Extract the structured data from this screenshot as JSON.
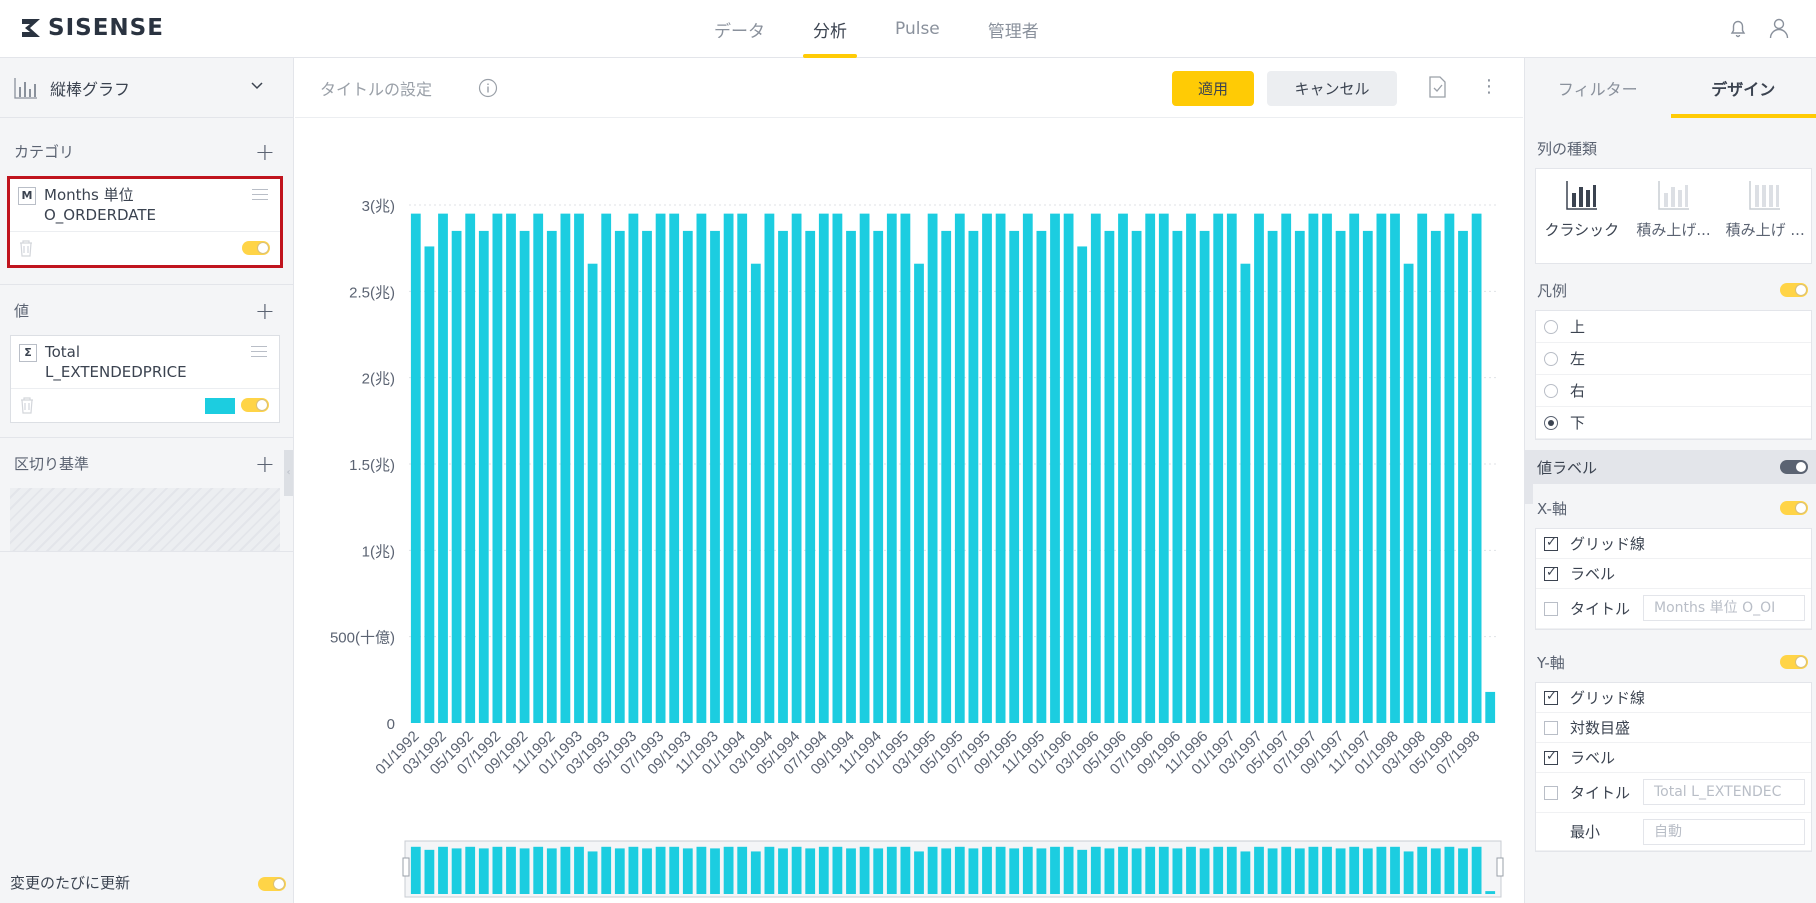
{
  "header": {
    "logo": "SISENSE",
    "nav": [
      {
        "label": "データ",
        "active": false
      },
      {
        "label": "分析",
        "active": true
      },
      {
        "label": "Pulse",
        "active": false
      },
      {
        "label": "管理者",
        "active": false
      }
    ]
  },
  "left_panel": {
    "chart_type": "縦棒グラフ",
    "category": {
      "title": "カテゴリ",
      "field_badge": "M",
      "field_line1": "Months 単位",
      "field_line2": "O_ORDERDATE"
    },
    "values": {
      "title": "値",
      "field_badge": "Σ",
      "field_line1": "Total",
      "field_line2": "L_EXTENDEDPRICE",
      "color": "#1ccde0"
    },
    "breakby": {
      "title": "区切り基準"
    },
    "auto_update": "変更のたびに更新"
  },
  "toolbar": {
    "title_placeholder": "タイトルの設定",
    "apply": "適用",
    "cancel": "キャンセル"
  },
  "chart_data": {
    "type": "bar",
    "ylim": [
      0,
      3000000000000
    ],
    "yticks": [
      "0",
      "500(十億)",
      "1(兆)",
      "1.5(兆)",
      "2(兆)",
      "2.5(兆)",
      "3(兆)"
    ],
    "x_tick_labels": [
      "01/1992",
      "03/1992",
      "05/1992",
      "07/1992",
      "09/1992",
      "11/1992",
      "01/1993",
      "03/1993",
      "05/1993",
      "07/1993",
      "09/1993",
      "11/1993",
      "01/1994",
      "03/1994",
      "05/1994",
      "07/1994",
      "09/1994",
      "11/1994",
      "01/1995",
      "03/1995",
      "05/1995",
      "07/1995",
      "09/1995",
      "11/1995",
      "01/1996",
      "03/1996",
      "05/1996",
      "07/1996",
      "09/1996",
      "11/1996",
      "01/1997",
      "03/1997",
      "05/1997",
      "07/1997",
      "09/1997",
      "11/1997",
      "01/1998",
      "03/1998",
      "05/1998",
      "07/1998"
    ],
    "series": [
      {
        "name": "Total L_EXTENDEDPRICE",
        "color": "#1ccde0",
        "values": [
          2.95,
          2.76,
          2.95,
          2.85,
          2.95,
          2.85,
          2.95,
          2.95,
          2.85,
          2.95,
          2.85,
          2.95,
          2.95,
          2.66,
          2.95,
          2.85,
          2.95,
          2.85,
          2.95,
          2.95,
          2.85,
          2.95,
          2.85,
          2.95,
          2.95,
          2.66,
          2.95,
          2.85,
          2.95,
          2.85,
          2.95,
          2.95,
          2.85,
          2.95,
          2.85,
          2.95,
          2.95,
          2.66,
          2.95,
          2.85,
          2.95,
          2.85,
          2.95,
          2.95,
          2.85,
          2.95,
          2.85,
          2.95,
          2.95,
          2.76,
          2.95,
          2.85,
          2.95,
          2.85,
          2.95,
          2.95,
          2.85,
          2.95,
          2.85,
          2.95,
          2.95,
          2.66,
          2.95,
          2.85,
          2.95,
          2.85,
          2.95,
          2.95,
          2.85,
          2.95,
          2.85,
          2.95,
          2.95,
          2.66,
          2.95,
          2.85,
          2.95,
          2.85,
          2.95,
          0.18
        ]
      }
    ],
    "legend": "bottom",
    "grid": true
  },
  "right_panel": {
    "tabs": [
      {
        "label": "フィルター",
        "active": false
      },
      {
        "label": "デザイン",
        "active": true
      }
    ],
    "column_type_title": "列の種類",
    "column_types": [
      "クラシック",
      "積み上げ...",
      "積み上げ ..."
    ],
    "legend_title": "凡例",
    "legend_positions": [
      {
        "label": "上",
        "selected": false
      },
      {
        "label": "左",
        "selected": false
      },
      {
        "label": "右",
        "selected": false
      },
      {
        "label": "下",
        "selected": true
      }
    ],
    "value_labels": "値ラベル",
    "x_axis": {
      "title": "X-軸",
      "grid": "グリッド線",
      "label": "ラベル",
      "axis_title": "タイトル",
      "axis_title_placeholder": "Months 単位 O_OI"
    },
    "y_axis": {
      "title": "Y-軸",
      "grid": "グリッド線",
      "log": "対数目盛",
      "label": "ラベル",
      "axis_title": "タイトル",
      "axis_title_placeholder": "Total L_EXTENDEC",
      "min": "最小",
      "min_placeholder": "自動"
    }
  }
}
